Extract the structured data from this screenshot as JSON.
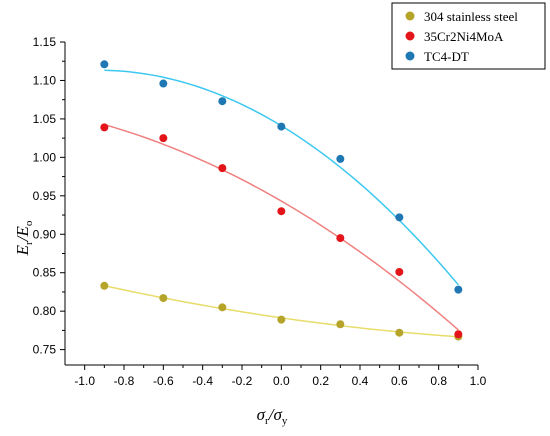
{
  "chart_data": {
    "type": "scatter",
    "title": "",
    "xlabel": {
      "main": "σ",
      "sub1": "r",
      "slash": "/σ",
      "sub2": "y"
    },
    "ylabel": {
      "main": "E",
      "sub1": "r",
      "slash": "/E",
      "sub2": "o"
    },
    "xlim": [
      -1.1,
      1.0
    ],
    "ylim": [
      0.73,
      1.15
    ],
    "x_ticks": [
      -1.0,
      -0.8,
      -0.6,
      -0.4,
      -0.2,
      0.0,
      0.2,
      0.4,
      0.6,
      0.8,
      1.0
    ],
    "x_tick_labels": [
      "-1.0",
      "-0.8",
      "-0.6",
      "-0.4",
      "-0.2",
      "0.0",
      "0.2",
      "0.4",
      "0.6",
      "0.8",
      "1.0"
    ],
    "y_ticks": [
      0.75,
      0.8,
      0.85,
      0.9,
      0.95,
      1.0,
      1.05,
      1.1,
      1.15
    ],
    "y_tick_labels": [
      "0.75",
      "0.80",
      "0.85",
      "0.90",
      "0.95",
      "1.00",
      "1.05",
      "1.10",
      "1.15"
    ],
    "grid": false,
    "legend_position": "top-right",
    "series": [
      {
        "name": "304 stainless steel",
        "marker_color": "#b5a32a",
        "line_color": "#e8dc6a",
        "x": [
          -0.9,
          -0.6,
          -0.3,
          0.0,
          0.3,
          0.6,
          0.9
        ],
        "y": [
          0.833,
          0.817,
          0.805,
          0.789,
          0.783,
          0.772,
          0.767
        ]
      },
      {
        "name": "35Cr2Ni4MoA",
        "marker_color": "#e3151a",
        "line_color": "#f08080",
        "x": [
          -0.9,
          -0.6,
          -0.3,
          0.0,
          0.3,
          0.6,
          0.9
        ],
        "y": [
          1.039,
          1.025,
          0.986,
          0.93,
          0.895,
          0.851,
          0.77
        ]
      },
      {
        "name": "TC4-DT",
        "marker_color": "#1f78b4",
        "line_color": "#3ec8f0",
        "x": [
          -0.9,
          -0.6,
          -0.3,
          0.0,
          0.3,
          0.6,
          0.9
        ],
        "y": [
          1.121,
          1.096,
          1.073,
          1.04,
          0.998,
          0.922,
          0.828
        ]
      }
    ]
  }
}
